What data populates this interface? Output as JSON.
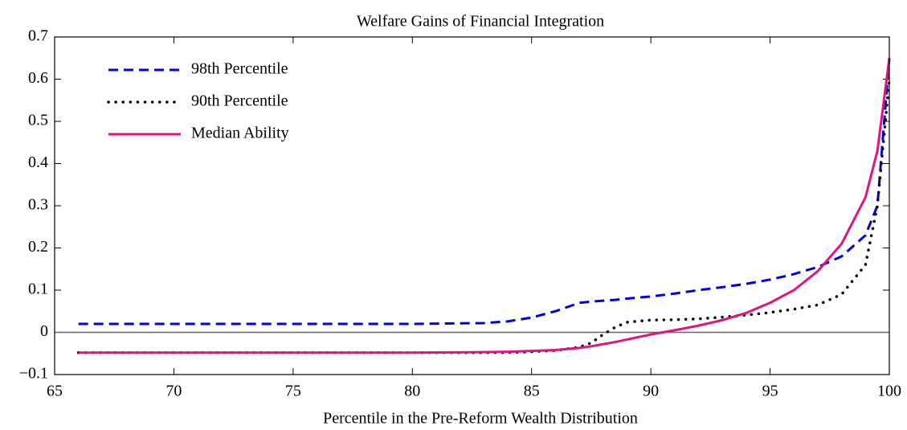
{
  "chart_data": {
    "type": "line",
    "title": "Welfare Gains of Financial Integration",
    "x_label": "Percentile in the Pre-Reform Wealth Distribution",
    "x": [
      66,
      70,
      75,
      80,
      83,
      84,
      85,
      86,
      87,
      87.5,
      88,
      88.5,
      89,
      90,
      91,
      92,
      93,
      94,
      95,
      96,
      97,
      98,
      99,
      99.5,
      100
    ],
    "series": [
      {
        "name": "98th Percentile",
        "color": "#0000dd",
        "style": "dashed",
        "values": [
          0.02,
          0.02,
          0.02,
          0.02,
          0.022,
          0.026,
          0.035,
          0.05,
          0.07,
          0.073,
          0.075,
          0.077,
          0.08,
          0.085,
          0.092,
          0.1,
          0.107,
          0.115,
          0.125,
          0.138,
          0.155,
          0.18,
          0.23,
          0.3,
          0.65
        ]
      },
      {
        "name": "90th Percentile",
        "color": "#000000",
        "style": "dotted",
        "values": [
          -0.048,
          -0.048,
          -0.048,
          -0.048,
          -0.048,
          -0.048,
          -0.046,
          -0.043,
          -0.035,
          -0.025,
          -0.005,
          0.012,
          0.024,
          0.029,
          0.03,
          0.032,
          0.036,
          0.041,
          0.047,
          0.055,
          0.065,
          0.09,
          0.16,
          0.3,
          0.6
        ]
      },
      {
        "name": "Median Ability",
        "color": "#e0147f",
        "style": "solid",
        "values": [
          -0.048,
          -0.048,
          -0.048,
          -0.048,
          -0.047,
          -0.046,
          -0.044,
          -0.042,
          -0.037,
          -0.033,
          -0.028,
          -0.023,
          -0.017,
          -0.005,
          0.005,
          0.016,
          0.029,
          0.046,
          0.07,
          0.1,
          0.145,
          0.21,
          0.32,
          0.43,
          0.65
        ]
      }
    ],
    "xlim": [
      65,
      100
    ],
    "xticks": [
      65,
      70,
      75,
      80,
      85,
      90,
      95,
      100
    ],
    "ylim": [
      -0.1,
      0.7
    ],
    "yticks": [
      {
        "value": -0.1,
        "label": "−0.1"
      },
      0,
      0.1,
      0.2,
      0.3,
      0.4,
      0.5,
      0.6,
      0.7
    ],
    "legend": "upper-left"
  }
}
